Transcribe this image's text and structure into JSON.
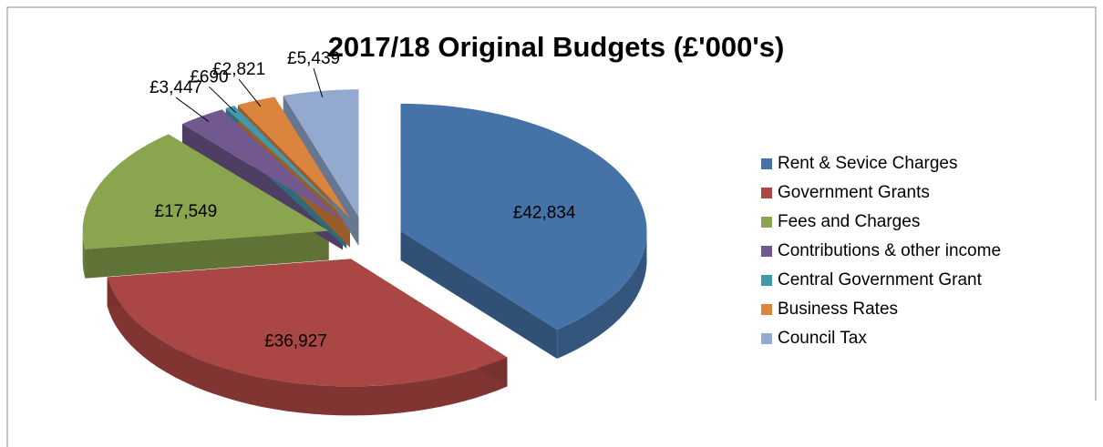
{
  "chart_data": {
    "type": "pie",
    "title": "2017/18 Original Budgets (£'000's)",
    "categories": [
      "Rent & Sevice Charges",
      "Government Grants",
      "Fees and Charges",
      "Contributions & other income",
      "Central Government Grant",
      "Business Rates",
      "Council Tax"
    ],
    "values": [
      42834,
      36927,
      17549,
      3447,
      690,
      2821,
      5439
    ],
    "value_labels": [
      "£42,834",
      "£36,927",
      "£17,549",
      "£3,447",
      "£690",
      "£2,821",
      "£5,439"
    ],
    "colors": [
      "#4572a7",
      "#aa4643",
      "#89a54e",
      "#71588f",
      "#4198af",
      "#db843d",
      "#93a9cf"
    ],
    "legend": "right"
  }
}
